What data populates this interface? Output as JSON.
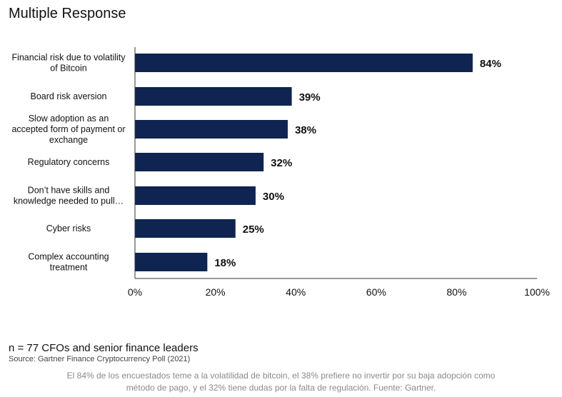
{
  "title": "Multiple Response",
  "chart_data": {
    "type": "bar",
    "orientation": "horizontal",
    "categories": [
      [
        "Financial risk due to volatility",
        "of Bitcoin"
      ],
      [
        "Board risk aversion"
      ],
      [
        "Slow adoption as an",
        "accepted form of payment or",
        "exchange"
      ],
      [
        "Regulatory concerns"
      ],
      [
        "Don’t have skills and",
        "knowledge needed to pull…"
      ],
      [
        "Cyber risks"
      ],
      [
        "Complex accounting",
        "treatment"
      ]
    ],
    "values": [
      84,
      39,
      38,
      32,
      30,
      25,
      18
    ],
    "value_labels": [
      "84%",
      "39%",
      "38%",
      "32%",
      "30%",
      "25%",
      "18%"
    ],
    "xlim": [
      0,
      100
    ],
    "xticks": [
      "0%",
      "20%",
      "40%",
      "60%",
      "80%",
      "100%"
    ],
    "bar_color": "#0f2451",
    "grid": false
  },
  "note": "n = 77 CFOs and senior finance leaders",
  "source": "Source: Gartner Finance Cryptocurrency Poll (2021)",
  "caption_lines": [
    "El 84% de los encuestados teme a la volatilidad de bitcoin, el 38% prefiere no invertir por su baja adopción como",
    "método de pago, y el 32% tiene dudas por la falta de regulación. Fuente: Gartner."
  ]
}
